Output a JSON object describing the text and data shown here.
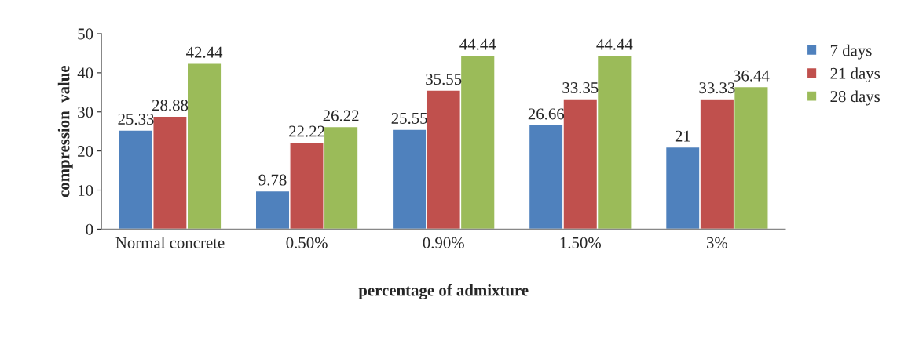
{
  "chart_data": {
    "type": "bar",
    "xlabel": "percentage of admixture",
    "ylabel": "compression  value",
    "categories": [
      "Normal concrete",
      "0.50%",
      "0.90%",
      "1.50%",
      "3%"
    ],
    "series": [
      {
        "name": "7 days",
        "color": "#4f81bd",
        "values": [
          25.33,
          9.78,
          25.55,
          26.66,
          21
        ]
      },
      {
        "name": "21 days",
        "color": "#c0504d",
        "values": [
          28.88,
          22.22,
          35.55,
          33.35,
          33.33
        ]
      },
      {
        "name": "28 days",
        "color": "#9bbb59",
        "values": [
          42.44,
          26.22,
          44.44,
          44.44,
          36.44
        ]
      }
    ],
    "ylim": [
      0,
      50
    ],
    "yticks": [
      0,
      10,
      20,
      30,
      40,
      50
    ],
    "grid": false,
    "legend": "top right",
    "data_labels": true
  }
}
